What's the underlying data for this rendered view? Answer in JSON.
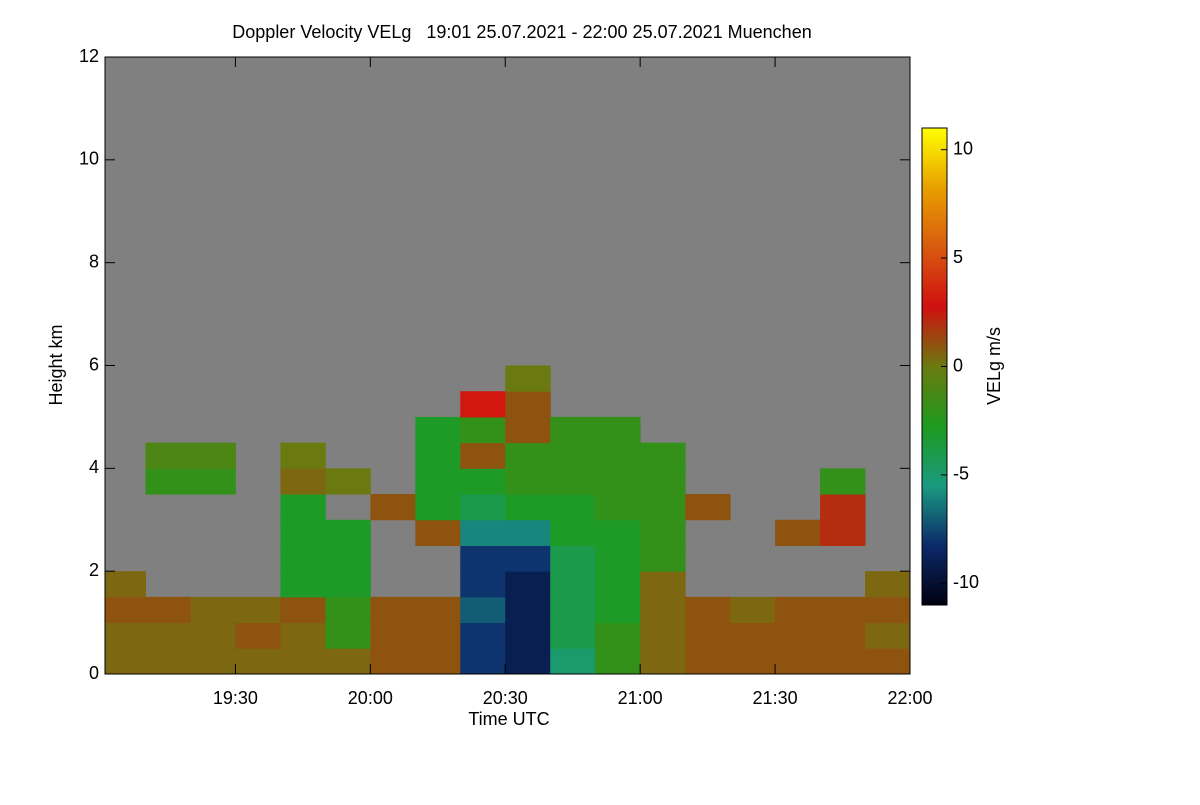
{
  "chart_data": {
    "type": "heatmap",
    "title": "Doppler Velocity VELg   19:01 25.07.2021 - 22:00 25.07.2021 Muenchen",
    "x_label": "Time UTC",
    "y_label": "Height km",
    "colorbar_label": "VELg m/s",
    "xlim": [
      19.0167,
      22.0
    ],
    "ylim": [
      0,
      12
    ],
    "zlim": [
      -11,
      11
    ],
    "xticks": [
      {
        "value": 19.5,
        "label": "19:30"
      },
      {
        "value": 20.0,
        "label": "20:00"
      },
      {
        "value": 20.5,
        "label": "20:30"
      },
      {
        "value": 21.0,
        "label": "21:00"
      },
      {
        "value": 21.5,
        "label": "21:30"
      },
      {
        "value": 22.0,
        "label": "22:00"
      }
    ],
    "yticks": [
      0,
      2,
      4,
      6,
      8,
      10,
      12
    ],
    "zticks": [
      -10,
      -5,
      0,
      5,
      10
    ],
    "background": "#808080",
    "colormap": [
      "#000010",
      "#0c2a6a",
      "#1a9a80",
      "#1e9a1e",
      "#6a7a10",
      "#d01010",
      "#d85a10",
      "#e8a000",
      "#ffff00"
    ],
    "xbins": [
      19.0167,
      19.1667,
      19.3333,
      19.5,
      19.6667,
      19.8333,
      20.0,
      20.1667,
      20.3333,
      20.5,
      20.6667,
      20.8333,
      21.0,
      21.1667,
      21.3333,
      21.5,
      21.6667,
      21.8333,
      22.0
    ],
    "ybins": [
      0,
      0.5,
      1,
      1.5,
      2,
      2.5,
      3,
      3.5,
      4,
      4.5,
      5,
      5.5,
      6
    ],
    "z": [
      [
        0.5,
        0.5,
        0.5,
        0.5,
        0.5,
        0.5,
        1,
        1,
        -8,
        -9,
        -5,
        -2,
        0.5,
        1,
        1,
        1,
        1,
        1
      ],
      [
        0.5,
        0.5,
        0.5,
        1,
        0.5,
        -2,
        1,
        1,
        -8,
        -9,
        -4,
        -2,
        0.5,
        1,
        1,
        1,
        1,
        0.5
      ],
      [
        1,
        1,
        0.5,
        0.5,
        1,
        -2,
        1,
        1,
        -7,
        -9,
        -4,
        -3,
        0.5,
        1,
        0.5,
        1,
        1,
        1
      ],
      [
        0.5,
        null,
        null,
        null,
        -3,
        -3,
        null,
        null,
        -8,
        -9,
        -4,
        -3,
        0.5,
        null,
        null,
        null,
        null,
        0.5
      ],
      [
        null,
        null,
        null,
        null,
        -3,
        -3,
        null,
        null,
        -8,
        -8,
        -4,
        -3,
        -2,
        null,
        null,
        null,
        null,
        null
      ],
      [
        null,
        null,
        null,
        null,
        -3,
        -3,
        null,
        1,
        -6,
        -6,
        -3,
        -3,
        -2,
        null,
        null,
        1,
        2,
        null
      ],
      [
        null,
        null,
        null,
        null,
        -3,
        null,
        1,
        -3,
        -4,
        -3,
        -3,
        -2,
        -2,
        1,
        null,
        null,
        2,
        null
      ],
      [
        null,
        -2,
        -2,
        null,
        0.5,
        0,
        null,
        -3,
        -3,
        -2,
        -2,
        -2,
        -2,
        null,
        null,
        null,
        -2,
        null
      ],
      [
        null,
        -1,
        -1,
        null,
        0,
        null,
        null,
        -3,
        1,
        -2,
        -2,
        -2,
        -2,
        null,
        null,
        null,
        null,
        null
      ],
      [
        null,
        null,
        null,
        null,
        null,
        null,
        null,
        -3,
        -2,
        1,
        -2,
        -2,
        null,
        null,
        null,
        null,
        null,
        null
      ],
      [
        null,
        null,
        null,
        null,
        null,
        null,
        null,
        null,
        3,
        1,
        null,
        null,
        null,
        null,
        null,
        null,
        null,
        null
      ],
      [
        null,
        null,
        null,
        null,
        null,
        null,
        null,
        null,
        null,
        0,
        null,
        null,
        null,
        null,
        null,
        null,
        null,
        null
      ]
    ]
  }
}
